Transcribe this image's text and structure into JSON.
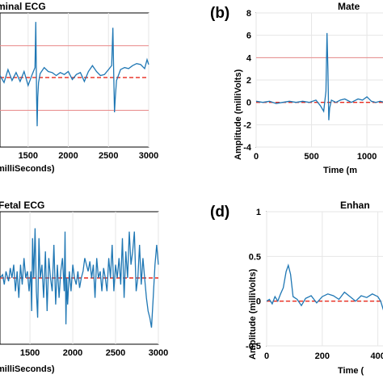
{
  "panels": [
    {
      "id": "a",
      "label": "",
      "title": "minal ECG",
      "xlabel": "milliSeconds)",
      "ylabel": "",
      "x_ticks": [
        1500,
        2000,
        2500,
        3000
      ],
      "y_ticks": [],
      "x_range": [
        1150,
        3000
      ],
      "y_range": [
        -7,
        6.5
      ],
      "dashed_y": 0,
      "ref_lines": [
        3.2,
        -3.3
      ]
    },
    {
      "id": "b",
      "label": "(b)",
      "title": "Mate",
      "xlabel": "Time (m",
      "ylabel": "Amplitude (milliVolts)",
      "x_ticks": [
        0,
        500,
        1000
      ],
      "y_ticks": [
        8,
        6,
        4,
        2,
        0,
        -2,
        -4
      ],
      "x_range": [
        0,
        1240
      ],
      "y_range": [
        -4,
        8
      ],
      "dashed_y": 0,
      "ref_lines": [
        4
      ]
    },
    {
      "id": "c",
      "label": "",
      "title": "Fetal ECG",
      "xlabel": "milliSeconds)",
      "ylabel": "",
      "x_ticks": [
        1500,
        2000,
        2500,
        3000
      ],
      "y_ticks": [],
      "x_range": [
        1150,
        3000
      ],
      "y_range": [
        -1,
        1
      ],
      "dashed_y": 0,
      "ref_lines": []
    },
    {
      "id": "d",
      "label": "(d)",
      "title": "Enhan",
      "xlabel": "Time (",
      "ylabel": "Amplitude (milliVolts)",
      "x_ticks": [
        0,
        200,
        400
      ],
      "y_ticks": [
        1,
        0.5,
        0,
        -0.5
      ],
      "x_range": [
        0,
        465
      ],
      "y_range": [
        -0.5,
        1
      ],
      "dashed_y": 0,
      "ref_lines": []
    }
  ],
  "chart_data": [
    {
      "type": "line",
      "title": "minal ECG",
      "xlabel": "milliSeconds)",
      "x": [
        1150,
        1200,
        1250,
        1300,
        1350,
        1400,
        1450,
        1500,
        1550,
        1585,
        1595,
        1605,
        1612,
        1620,
        1630,
        1650,
        1700,
        1750,
        1800,
        1850,
        1900,
        1950,
        2000,
        2050,
        2100,
        2150,
        2200,
        2250,
        2300,
        2350,
        2400,
        2450,
        2500,
        2540,
        2555,
        2565,
        2575,
        2585,
        2600,
        2650,
        2700,
        2750,
        2800,
        2850,
        2900,
        2950,
        2980,
        3000
      ],
      "y": [
        0.2,
        -0.5,
        0.8,
        -0.3,
        0.5,
        -0.4,
        0.6,
        -0.8,
        0.3,
        1.0,
        5.6,
        -2.0,
        -4.9,
        -2.0,
        -0.5,
        0.4,
        1.0,
        0.6,
        0.5,
        0.2,
        0.5,
        0.3,
        0.6,
        -0.2,
        0.3,
        0.5,
        -0.4,
        0.6,
        1.2,
        0.6,
        0.2,
        0.3,
        0.8,
        1.2,
        5.0,
        0.5,
        -3.5,
        -2.0,
        -0.3,
        0.8,
        1.0,
        0.9,
        1.2,
        1.4,
        1.3,
        0.9,
        1.8,
        1.3
      ],
      "ylim": [
        -7,
        6.5
      ]
    },
    {
      "type": "line",
      "title": "Mate",
      "xlabel": "Time (m",
      "ylabel": "Amplitude (milliVolts)",
      "x": [
        0,
        60,
        120,
        180,
        240,
        300,
        360,
        420,
        480,
        540,
        580,
        610,
        630,
        640,
        648,
        656,
        664,
        680,
        720,
        760,
        800,
        860,
        920,
        960,
        1000,
        1040,
        1080,
        1120,
        1160,
        1200,
        1240
      ],
      "y": [
        0.1,
        0.0,
        0.1,
        -0.1,
        0.0,
        0.1,
        0.0,
        0.1,
        0.0,
        0.2,
        -0.3,
        -0.8,
        1.0,
        6.2,
        3.0,
        -1.6,
        -0.5,
        0.2,
        0.0,
        0.2,
        0.3,
        0.0,
        0.3,
        0.2,
        0.5,
        0.1,
        0.0,
        0.1,
        0.0,
        0.1,
        0.1
      ],
      "xlim": [
        0,
        1240
      ],
      "ylim": [
        -4,
        8
      ]
    },
    {
      "type": "line",
      "title": "Fetal ECG",
      "xlabel": "milliSeconds)",
      "x": [
        1150,
        1180,
        1200,
        1220,
        1250,
        1270,
        1290,
        1310,
        1330,
        1350,
        1370,
        1390,
        1410,
        1430,
        1450,
        1470,
        1490,
        1510,
        1520,
        1530,
        1545,
        1560,
        1575,
        1590,
        1605,
        1620,
        1640,
        1660,
        1680,
        1700,
        1720,
        1740,
        1760,
        1780,
        1800,
        1820,
        1840,
        1860,
        1880,
        1900,
        1910,
        1920,
        1930,
        1940,
        1960,
        1980,
        2000,
        2020,
        2040,
        2060,
        2080,
        2100,
        2120,
        2140,
        2160,
        2180,
        2200,
        2220,
        2240,
        2260,
        2280,
        2300,
        2320,
        2340,
        2360,
        2380,
        2400,
        2420,
        2440,
        2460,
        2480,
        2500,
        2520,
        2540,
        2560,
        2580,
        2600,
        2620,
        2640,
        2660,
        2680,
        2700,
        2720,
        2740,
        2760,
        2780,
        2800,
        2820,
        2840,
        2860,
        2880,
        2900,
        2920,
        2940,
        2960,
        2980,
        3000
      ],
      "y": [
        0.0,
        0.05,
        -0.1,
        0.1,
        -0.05,
        0.15,
        0.0,
        0.2,
        -0.2,
        0.1,
        -0.3,
        0.2,
        -0.1,
        0.3,
        0.0,
        0.1,
        -0.2,
        0.1,
        -0.5,
        0.6,
        0.0,
        0.75,
        -0.2,
        -0.6,
        0.6,
        0.0,
        0.2,
        -0.3,
        0.4,
        -0.5,
        0.3,
        0.0,
        -0.2,
        0.5,
        -0.4,
        0.2,
        -0.3,
        0.1,
        0.3,
        -0.2,
        0.7,
        -0.7,
        0.0,
        -0.4,
        0.1,
        -0.2,
        0.2,
        0.0,
        -0.1,
        0.1,
        -0.15,
        0.0,
        0.1,
        0.3,
        0.2,
        0.1,
        0.25,
        0.0,
        0.2,
        -0.3,
        0.3,
        0.0,
        0.1,
        -0.2,
        0.15,
        0.0,
        -0.2,
        0.3,
        0.0,
        0.5,
        -0.2,
        0.2,
        0.0,
        0.3,
        -0.1,
        0.6,
        -0.3,
        0.4,
        0.0,
        0.7,
        0.2,
        0.4,
        0.7,
        -0.2,
        0.0,
        0.5,
        -0.1,
        0.3,
        0.0,
        -0.3,
        -0.5,
        -0.6,
        -0.75,
        -0.3,
        0.2,
        0.5,
        0.2
      ],
      "xlim": [
        1150,
        3000
      ],
      "ylim": [
        -1,
        1
      ]
    },
    {
      "type": "line",
      "title": "Enhan",
      "xlabel": "Time (",
      "ylabel": "Amplitude (milliVolts)",
      "x": [
        0,
        10,
        20,
        30,
        40,
        50,
        60,
        70,
        78,
        86,
        95,
        110,
        125,
        140,
        160,
        180,
        200,
        220,
        240,
        260,
        280,
        300,
        320,
        340,
        360,
        380,
        400,
        410,
        420,
        430,
        440,
        450,
        458,
        465
      ],
      "y": [
        0.0,
        0.02,
        -0.03,
        0.05,
        0.0,
        0.08,
        0.15,
        0.33,
        0.4,
        0.3,
        0.05,
        0.02,
        -0.05,
        0.03,
        0.06,
        -0.02,
        0.05,
        0.08,
        0.06,
        0.02,
        0.1,
        0.05,
        0.0,
        0.06,
        0.04,
        0.08,
        0.05,
        0.0,
        -0.1,
        -0.05,
        0.02,
        -0.05,
        -0.35,
        -0.3
      ],
      "xlim": [
        0,
        465
      ],
      "ylim": [
        -0.5,
        1
      ]
    }
  ],
  "colors": {
    "signal": "#1f77b4",
    "dashed": "#e8281c",
    "ref": "#e88a8a",
    "grid": "#e6e6e6",
    "axis": "#000000"
  }
}
